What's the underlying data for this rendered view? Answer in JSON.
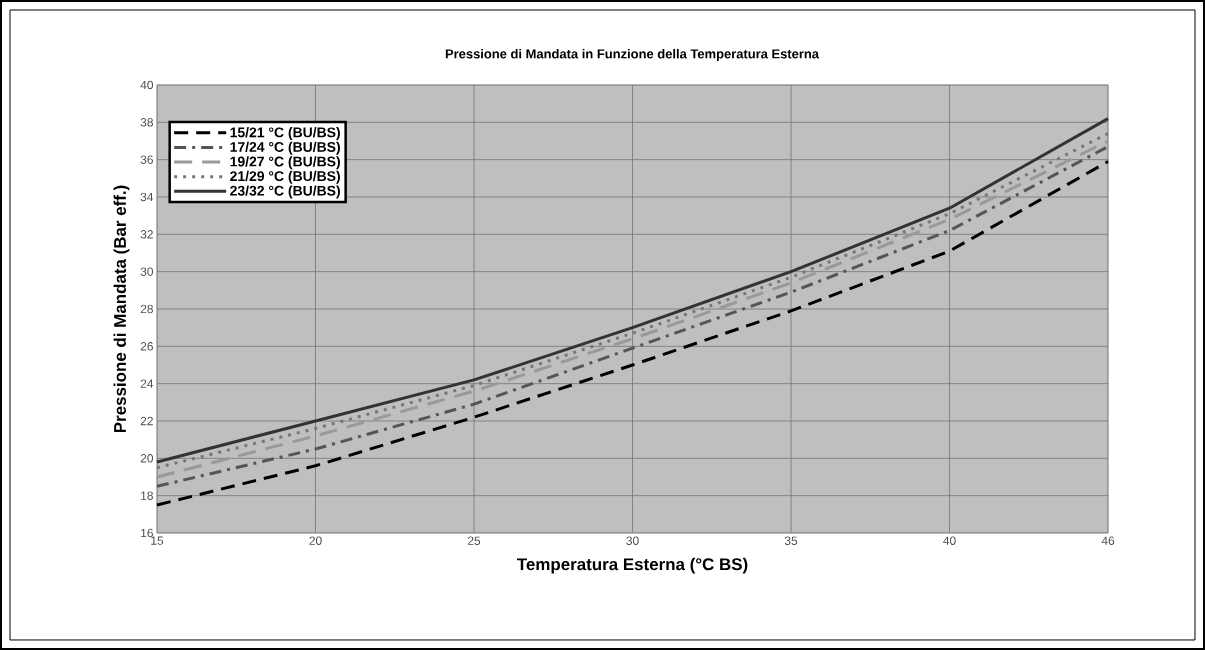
{
  "chart_data": {
    "type": "line",
    "title": "Pressione di Mandata in Funzione della Temperatura Esterna",
    "xlabel": "Temperatura Esterna (°C BS)",
    "ylabel": "Pressione di Mandata (Bar eff.)",
    "categories": [
      "15",
      "20",
      "25",
      "30",
      "35",
      "40",
      "46"
    ],
    "ylim": [
      16,
      40
    ],
    "yticks": [
      16,
      18,
      20,
      22,
      24,
      26,
      28,
      30,
      32,
      34,
      36,
      38,
      40
    ],
    "grid": true,
    "legend": "top left",
    "marker": "none",
    "series": [
      {
        "name": "15/21 °C (BU/BS)",
        "color": "#000000",
        "line_style": "dashed",
        "values": [
          17.5,
          19.6,
          22.2,
          25.0,
          27.9,
          31.1,
          35.9
        ]
      },
      {
        "name": "17/24 °C (BU/BS)",
        "color": "#555555",
        "line_style": "dashdot",
        "values": [
          18.5,
          20.5,
          22.9,
          25.9,
          28.9,
          32.2,
          36.7
        ]
      },
      {
        "name": "19/27 °C (BU/BS)",
        "color": "#999999",
        "line_style": "longdash",
        "values": [
          19.0,
          21.2,
          23.6,
          26.4,
          29.4,
          32.8,
          37.0
        ]
      },
      {
        "name": "21/29 °C (BU/BS)",
        "color": "#777777",
        "line_style": "dotted",
        "values": [
          19.5,
          21.6,
          23.9,
          26.7,
          29.7,
          33.1,
          37.4
        ]
      },
      {
        "name": "23/32 °C (BU/BS)",
        "color": "#333333",
        "line_style": "solid",
        "values": [
          19.8,
          22.0,
          24.2,
          27.0,
          30.0,
          33.4,
          38.2
        ]
      }
    ]
  }
}
